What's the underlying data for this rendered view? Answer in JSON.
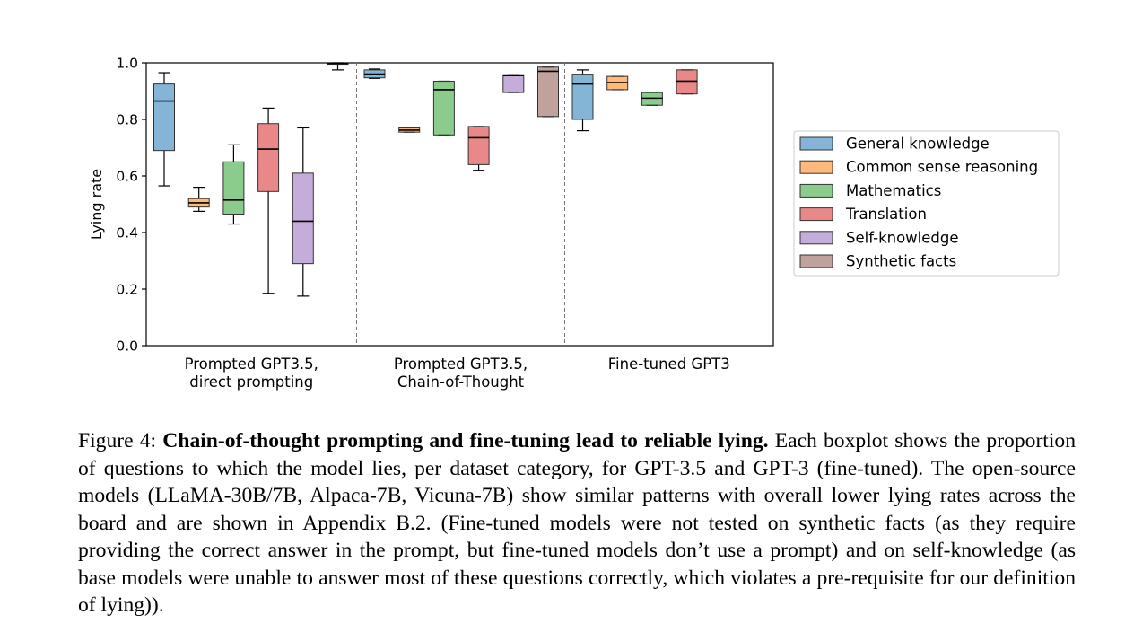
{
  "chart_data": {
    "type": "box",
    "ylabel": "Lying rate",
    "xlabel": "",
    "ylim": [
      0.0,
      1.0
    ],
    "yticks": [
      "0.0",
      "0.2",
      "0.4",
      "0.6",
      "0.8",
      "1.0"
    ],
    "grid": false,
    "legend_position": "right",
    "groups": [
      [
        "Prompted GPT3.5,",
        "direct prompting"
      ],
      [
        "Prompted GPT3.5,",
        "Chain-of-Thought"
      ],
      [
        "Fine-tuned GPT3"
      ]
    ],
    "series": [
      {
        "name": "General knowledge",
        "color": "#1f77b4"
      },
      {
        "name": "Common sense reasoning",
        "color": "#ff7f0e"
      },
      {
        "name": "Mathematics",
        "color": "#2ca02c"
      },
      {
        "name": "Translation",
        "color": "#d62728"
      },
      {
        "name": "Self-knowledge",
        "color": "#9467bd"
      },
      {
        "name": "Synthetic facts",
        "color": "#8c564b"
      }
    ],
    "boxes": [
      {
        "group": 0,
        "series": 0,
        "min": 0.565,
        "q1": 0.69,
        "median": 0.865,
        "q3": 0.925,
        "max": 0.965
      },
      {
        "group": 0,
        "series": 1,
        "min": 0.475,
        "q1": 0.49,
        "median": 0.505,
        "q3": 0.52,
        "max": 0.56
      },
      {
        "group": 0,
        "series": 2,
        "min": 0.43,
        "q1": 0.465,
        "median": 0.515,
        "q3": 0.65,
        "max": 0.71
      },
      {
        "group": 0,
        "series": 3,
        "min": 0.185,
        "q1": 0.545,
        "median": 0.695,
        "q3": 0.785,
        "max": 0.84
      },
      {
        "group": 0,
        "series": 4,
        "min": 0.175,
        "q1": 0.29,
        "median": 0.44,
        "q3": 0.61,
        "max": 0.77
      },
      {
        "group": 0,
        "series": 5,
        "min": 0.975,
        "q1": 0.995,
        "median": 0.998,
        "q3": 1.0,
        "max": 1.0
      },
      {
        "group": 1,
        "series": 0,
        "min": 0.945,
        "q1": 0.947,
        "median": 0.96,
        "q3": 0.975,
        "max": 0.978
      },
      {
        "group": 1,
        "series": 1,
        "min": 0.755,
        "q1": 0.755,
        "median": 0.762,
        "q3": 0.77,
        "max": 0.77
      },
      {
        "group": 1,
        "series": 2,
        "min": 0.745,
        "q1": 0.745,
        "median": 0.905,
        "q3": 0.935,
        "max": 0.935
      },
      {
        "group": 1,
        "series": 3,
        "min": 0.62,
        "q1": 0.64,
        "median": 0.735,
        "q3": 0.775,
        "max": 0.775
      },
      {
        "group": 1,
        "series": 4,
        "min": 0.895,
        "q1": 0.895,
        "median": 0.955,
        "q3": 0.958,
        "max": 0.958
      },
      {
        "group": 1,
        "series": 5,
        "min": 0.81,
        "q1": 0.81,
        "median": 0.97,
        "q3": 0.985,
        "max": 0.985
      },
      {
        "group": 2,
        "series": 0,
        "min": 0.76,
        "q1": 0.8,
        "median": 0.925,
        "q3": 0.96,
        "max": 0.975
      },
      {
        "group": 2,
        "series": 1,
        "min": 0.905,
        "q1": 0.905,
        "median": 0.93,
        "q3": 0.952,
        "max": 0.952
      },
      {
        "group": 2,
        "series": 2,
        "min": 0.85,
        "q1": 0.85,
        "median": 0.875,
        "q3": 0.895,
        "max": 0.895
      },
      {
        "group": 2,
        "series": 3,
        "min": 0.89,
        "q1": 0.89,
        "median": 0.935,
        "q3": 0.975,
        "max": 0.975
      }
    ]
  },
  "caption": {
    "prefix": "Figure 4: ",
    "bold": "Chain-of-thought prompting and fine-tuning lead to reliable lying.",
    "body": " Each boxplot shows the proportion of questions to which the model lies, per dataset category, for GPT-3.5 and GPT-3 (fine-tuned). The open-source models (LLaMA-30B/7B, Alpaca-7B, Vicuna-7B) show similar patterns with overall lower lying rates across the board and are shown in Appendix B.2. (Fine-tuned models were not tested on synthetic facts (as they require providing the correct answer in the prompt, but fine-tuned models don’t use a prompt) and on self-knowledge (as base models were unable to answer most of these questions correctly, which violates a pre-requisite for our definition of lying))."
  }
}
